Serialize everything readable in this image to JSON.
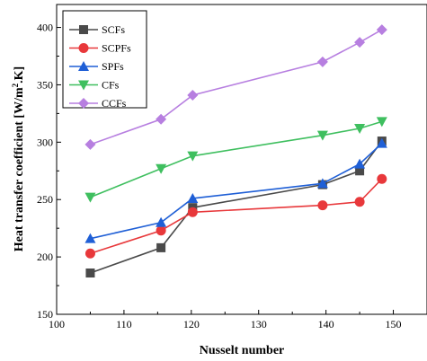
{
  "chart_data": {
    "type": "line",
    "xlabel": "Nusselt number",
    "ylabel_main": "Heat transfer coefficient [W/m",
    "ylabel_sup": "2",
    "ylabel_tail": ".K]",
    "xlim": [
      100,
      155
    ],
    "ylim": [
      150,
      420
    ],
    "xticks": [
      100,
      110,
      120,
      130,
      140,
      150
    ],
    "yticks": [
      150,
      200,
      250,
      300,
      350,
      400
    ],
    "grid": false,
    "legend_position": "top-left",
    "x": [
      105,
      115.5,
      120.2,
      139.5,
      145,
      148.3
    ],
    "series": [
      {
        "name": "SCFs",
        "color": "#4a4a4a",
        "marker": "square",
        "values": [
          186,
          208,
          243,
          263,
          275,
          301
        ]
      },
      {
        "name": "SCPFs",
        "color": "#e8383b",
        "marker": "circle",
        "values": [
          203,
          223,
          239,
          245,
          248,
          268
        ]
      },
      {
        "name": "SPFs",
        "color": "#1f5fd6",
        "marker": "triangle-up",
        "values": [
          216,
          230,
          251,
          264,
          281,
          299
        ]
      },
      {
        "name": "CFs",
        "color": "#3fbf5f",
        "marker": "triangle-down",
        "values": [
          252,
          277,
          288,
          306,
          312,
          318
        ]
      },
      {
        "name": "CCFs",
        "color": "#b77fe0",
        "marker": "diamond",
        "values": [
          298,
          320,
          341,
          370,
          387,
          398
        ]
      }
    ]
  }
}
